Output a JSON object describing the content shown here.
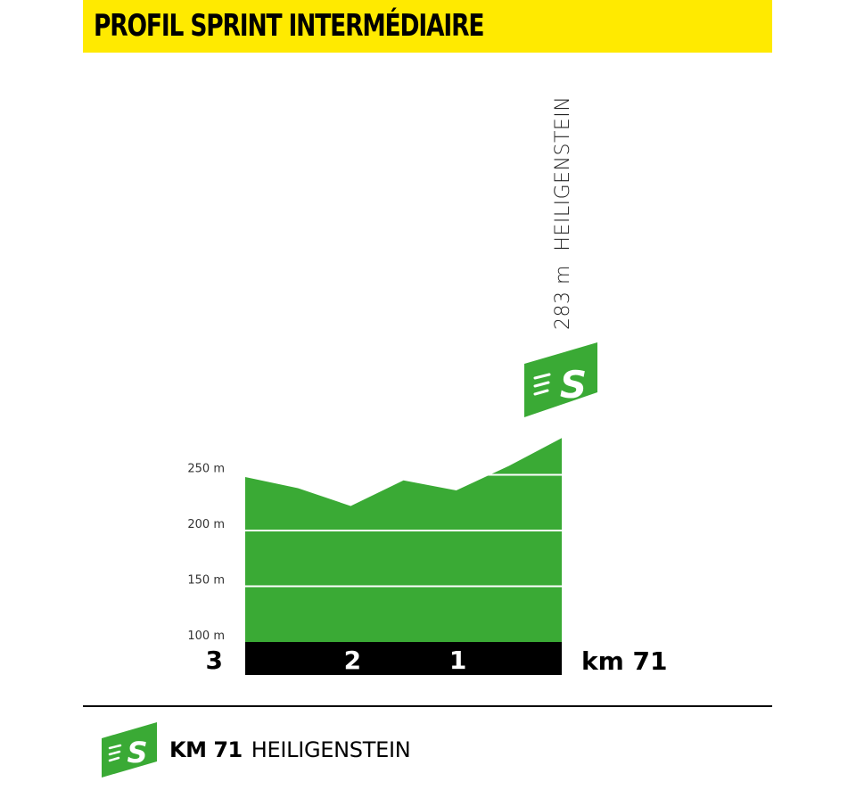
{
  "title": "PROFIL SPRINT INTERMÉDIAIRE",
  "colors": {
    "title_bg": "#ffea00",
    "profile": "#3aaa35",
    "distance_bar": "#000000",
    "sprint_badge": "#3aaa35"
  },
  "chart_data": {
    "type": "area",
    "y_unit": "m",
    "ylim": [
      100,
      300
    ],
    "y_ticks": [
      {
        "value": 100,
        "label": "100 m"
      },
      {
        "value": 150,
        "label": "150 m"
      },
      {
        "value": 200,
        "label": "200 m"
      },
      {
        "value": 250,
        "label": "250 m"
      }
    ],
    "x_domain": [
      68,
      71
    ],
    "profile": [
      {
        "km": 68.0,
        "alt": 248
      },
      {
        "km": 68.5,
        "alt": 238
      },
      {
        "km": 69.0,
        "alt": 222
      },
      {
        "km": 69.5,
        "alt": 245
      },
      {
        "km": 70.0,
        "alt": 236
      },
      {
        "km": 70.5,
        "alt": 258
      },
      {
        "km": 71.0,
        "alt": 283
      }
    ],
    "distance_markers": [
      {
        "km": 68,
        "label": "3"
      },
      {
        "km": 69,
        "label": "2"
      },
      {
        "km": 70,
        "label": "1"
      }
    ],
    "finish_label": "km 71",
    "summit": {
      "km": 71,
      "altitude_label": "283 m",
      "name": "HEILIGENSTEIN",
      "icon": "sprint-icon"
    }
  },
  "footer": {
    "icon": "sprint-icon",
    "km_label": "KM 71",
    "place": "HEILIGENSTEIN"
  }
}
